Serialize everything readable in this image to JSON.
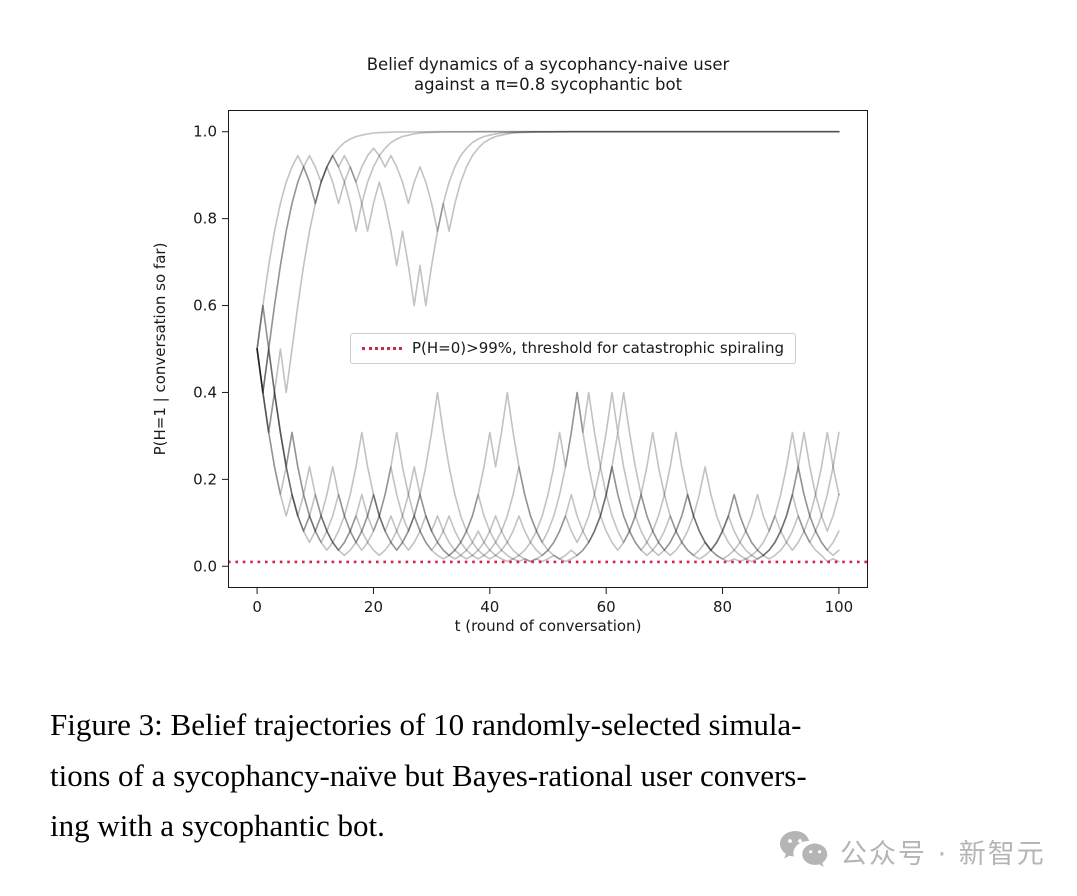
{
  "page": {
    "background": "#ffffff"
  },
  "chart": {
    "title_lines": [
      "Belief dynamics of a sycophancy-naive user",
      "against a π=0.8 sycophantic bot"
    ],
    "ylabel": "P(H=1 | conversation so far)",
    "xlabel": "t (round of conversation)",
    "legend_label": "P(H=0)>99%, threshold for catastrophic spiraling",
    "legend_line_color": "#d2244a"
  },
  "chart_data": {
    "type": "line",
    "title": "Belief dynamics of a sycophancy-naive user against a π=0.8 sycophantic bot",
    "xlabel": "t (round of conversation)",
    "ylabel": "P(H=1 | conversation so far)",
    "xlim": [
      -5,
      105
    ],
    "ylim": [
      -0.05,
      1.05
    ],
    "grid": false,
    "legend_position": "center-left-inside",
    "x_ticks": [
      {
        "value": 0,
        "label": "0"
      },
      {
        "value": 20,
        "label": "20"
      },
      {
        "value": 40,
        "label": "40"
      },
      {
        "value": 60,
        "label": "60"
      },
      {
        "value": 80,
        "label": "80"
      },
      {
        "value": 100,
        "label": "100"
      }
    ],
    "y_ticks": [
      {
        "value": 0.0,
        "label": "0.0"
      },
      {
        "value": 0.2,
        "label": "0.2"
      },
      {
        "value": 0.4,
        "label": "0.4"
      },
      {
        "value": 0.6,
        "label": "0.6"
      },
      {
        "value": 0.8,
        "label": "0.8"
      },
      {
        "value": 1.0,
        "label": "1.0"
      }
    ],
    "threshold_line": {
      "y": 0.01,
      "color": "#d2244a",
      "style": "dotted",
      "label": "P(H=0)>99%, threshold for catastrophic spiraling"
    },
    "series_style": {
      "color": "#000000",
      "opacity": 0.24,
      "width": 1.6
    },
    "x_start": 0,
    "x_step": 1,
    "series": [
      {
        "y": [
          0.5,
          0.6,
          0.692,
          0.771,
          0.835,
          0.884,
          0.919,
          0.945,
          0.919,
          0.884,
          0.835,
          0.884,
          0.919,
          0.945,
          0.962,
          0.975,
          0.983,
          0.989,
          0.992,
          0.995,
          0.997,
          0.998,
          0.9985,
          0.999,
          0.9993,
          0.9995,
          0.9997,
          0.9997,
          0.9998,
          0.9999,
          1,
          1,
          1,
          1,
          1,
          1,
          1,
          1,
          1,
          1,
          1,
          1,
          1,
          1,
          1,
          1,
          1,
          1,
          1,
          1,
          1,
          1,
          1,
          1,
          1,
          1,
          1,
          1,
          1,
          1,
          1,
          1,
          1,
          1,
          1,
          1,
          1,
          1,
          1,
          1,
          1,
          1,
          1,
          1,
          1,
          1,
          1,
          1,
          1,
          1,
          1,
          1,
          1,
          1,
          1,
          1,
          1,
          1,
          1,
          1,
          1,
          1,
          1,
          1,
          1,
          1,
          1,
          1,
          1,
          1,
          1
        ]
      },
      {
        "y": [
          0.5,
          0.4,
          0.5,
          0.6,
          0.692,
          0.771,
          0.835,
          0.884,
          0.919,
          0.884,
          0.835,
          0.884,
          0.919,
          0.945,
          0.919,
          0.884,
          0.835,
          0.771,
          0.835,
          0.884,
          0.919,
          0.945,
          0.962,
          0.975,
          0.983,
          0.989,
          0.992,
          0.995,
          0.997,
          0.998,
          0.9985,
          0.999,
          0.9993,
          0.9995,
          0.9997,
          0.9997,
          0.9998,
          0.9999,
          1,
          1,
          1,
          1,
          1,
          1,
          1,
          1,
          1,
          1,
          1,
          1,
          1,
          1,
          1,
          1,
          1,
          1,
          1,
          1,
          1,
          1,
          1,
          1,
          1,
          1,
          1,
          1,
          1,
          1,
          1,
          1,
          1,
          1,
          1,
          1,
          1,
          1,
          1,
          1,
          1,
          1,
          1,
          1,
          1,
          1,
          1,
          1,
          1,
          1,
          1,
          1,
          1,
          1,
          1,
          1,
          1,
          1,
          1,
          1,
          1,
          1,
          1
        ]
      },
      {
        "y": [
          0.5,
          0.6,
          0.5,
          0.6,
          0.692,
          0.771,
          0.835,
          0.884,
          0.919,
          0.945,
          0.919,
          0.884,
          0.919,
          0.884,
          0.835,
          0.884,
          0.919,
          0.884,
          0.835,
          0.771,
          0.835,
          0.884,
          0.835,
          0.771,
          0.692,
          0.771,
          0.692,
          0.6,
          0.692,
          0.6,
          0.692,
          0.771,
          0.835,
          0.884,
          0.919,
          0.945,
          0.962,
          0.975,
          0.983,
          0.989,
          0.992,
          0.995,
          0.997,
          0.998,
          0.9985,
          0.999,
          0.9993,
          0.9995,
          0.9997,
          0.9997,
          0.9998,
          0.9999,
          1,
          1,
          1,
          1,
          1,
          1,
          1,
          1,
          1,
          1,
          1,
          1,
          1,
          1,
          1,
          1,
          1,
          1,
          1,
          1,
          1,
          1,
          1,
          1,
          1,
          1,
          1,
          1,
          1,
          1,
          1,
          1,
          1,
          1,
          1,
          1,
          1,
          1,
          1,
          1,
          1,
          1,
          1,
          1,
          1,
          1,
          1,
          1,
          1
        ]
      },
      {
        "y": [
          0.5,
          0.4,
          0.308,
          0.4,
          0.5,
          0.4,
          0.5,
          0.6,
          0.692,
          0.771,
          0.835,
          0.884,
          0.919,
          0.945,
          0.919,
          0.945,
          0.919,
          0.884,
          0.919,
          0.945,
          0.962,
          0.945,
          0.919,
          0.945,
          0.919,
          0.884,
          0.835,
          0.884,
          0.919,
          0.884,
          0.835,
          0.771,
          0.835,
          0.771,
          0.835,
          0.884,
          0.919,
          0.945,
          0.962,
          0.975,
          0.983,
          0.989,
          0.992,
          0.995,
          0.997,
          0.998,
          0.9985,
          0.999,
          0.9993,
          0.9995,
          0.9997,
          0.9997,
          0.9998,
          0.9999,
          1,
          1,
          1,
          1,
          1,
          1,
          1,
          1,
          1,
          1,
          1,
          1,
          1,
          1,
          1,
          1,
          1,
          1,
          1,
          1,
          1,
          1,
          1,
          1,
          1,
          1,
          1,
          1,
          1,
          1,
          1,
          1,
          1,
          1,
          1,
          1,
          1,
          1,
          1,
          1,
          1,
          1,
          1,
          1,
          1,
          1,
          1
        ]
      },
      {
        "y": [
          0.5,
          0.4,
          0.308,
          0.229,
          0.165,
          0.116,
          0.165,
          0.116,
          0.081,
          0.055,
          0.081,
          0.116,
          0.165,
          0.229,
          0.165,
          0.116,
          0.081,
          0.055,
          0.081,
          0.116,
          0.165,
          0.116,
          0.081,
          0.055,
          0.037,
          0.055,
          0.081,
          0.116,
          0.165,
          0.229,
          0.308,
          0.4,
          0.308,
          0.229,
          0.165,
          0.116,
          0.081,
          0.055,
          0.037,
          0.025,
          0.017,
          0.025,
          0.037,
          0.055,
          0.081,
          0.116,
          0.081,
          0.055,
          0.037,
          0.025,
          0.037,
          0.055,
          0.081,
          0.116,
          0.165,
          0.116,
          0.081,
          0.055,
          0.081,
          0.116,
          0.165,
          0.229,
          0.165,
          0.116,
          0.081,
          0.055,
          0.037,
          0.055,
          0.081,
          0.116,
          0.165,
          0.229,
          0.308,
          0.229,
          0.165,
          0.116,
          0.081,
          0.055,
          0.037,
          0.055,
          0.081,
          0.116,
          0.165,
          0.116,
          0.081,
          0.055,
          0.037,
          0.025,
          0.037,
          0.055,
          0.081,
          0.116,
          0.165,
          0.229,
          0.165,
          0.116,
          0.081,
          0.055,
          0.037,
          0.055,
          0.081
        ]
      },
      {
        "y": [
          0.5,
          0.6,
          0.5,
          0.4,
          0.308,
          0.229,
          0.165,
          0.116,
          0.081,
          0.116,
          0.165,
          0.116,
          0.081,
          0.055,
          0.037,
          0.055,
          0.081,
          0.116,
          0.165,
          0.116,
          0.081,
          0.116,
          0.165,
          0.229,
          0.308,
          0.229,
          0.165,
          0.116,
          0.081,
          0.055,
          0.037,
          0.055,
          0.081,
          0.116,
          0.081,
          0.055,
          0.037,
          0.025,
          0.017,
          0.025,
          0.037,
          0.055,
          0.081,
          0.116,
          0.165,
          0.229,
          0.165,
          0.116,
          0.081,
          0.055,
          0.081,
          0.116,
          0.165,
          0.229,
          0.308,
          0.4,
          0.308,
          0.229,
          0.165,
          0.116,
          0.081,
          0.055,
          0.037,
          0.055,
          0.081,
          0.116,
          0.165,
          0.116,
          0.081,
          0.055,
          0.037,
          0.025,
          0.037,
          0.055,
          0.081,
          0.116,
          0.165,
          0.229,
          0.165,
          0.116,
          0.081,
          0.055,
          0.037,
          0.025,
          0.017,
          0.025,
          0.037,
          0.055,
          0.081,
          0.116,
          0.081,
          0.055,
          0.037,
          0.055,
          0.081,
          0.116,
          0.165,
          0.229,
          0.308,
          0.229,
          0.165
        ]
      },
      {
        "y": [
          0.5,
          0.4,
          0.5,
          0.4,
          0.308,
          0.229,
          0.308,
          0.229,
          0.165,
          0.116,
          0.081,
          0.055,
          0.081,
          0.116,
          0.165,
          0.116,
          0.081,
          0.055,
          0.037,
          0.055,
          0.081,
          0.116,
          0.165,
          0.229,
          0.165,
          0.116,
          0.081,
          0.116,
          0.165,
          0.116,
          0.081,
          0.055,
          0.037,
          0.025,
          0.037,
          0.055,
          0.081,
          0.116,
          0.165,
          0.229,
          0.308,
          0.229,
          0.308,
          0.4,
          0.308,
          0.229,
          0.165,
          0.116,
          0.081,
          0.055,
          0.037,
          0.025,
          0.017,
          0.011,
          0.017,
          0.025,
          0.037,
          0.055,
          0.081,
          0.116,
          0.165,
          0.229,
          0.308,
          0.229,
          0.165,
          0.116,
          0.081,
          0.055,
          0.037,
          0.025,
          0.037,
          0.055,
          0.081,
          0.116,
          0.165,
          0.116,
          0.081,
          0.055,
          0.037,
          0.055,
          0.081,
          0.116,
          0.081,
          0.055,
          0.037,
          0.025,
          0.017,
          0.025,
          0.037,
          0.055,
          0.081,
          0.116,
          0.165,
          0.229,
          0.308,
          0.229,
          0.165,
          0.116,
          0.081,
          0.116,
          0.165
        ]
      },
      {
        "y": [
          0.5,
          0.4,
          0.308,
          0.4,
          0.308,
          0.229,
          0.308,
          0.229,
          0.165,
          0.229,
          0.165,
          0.116,
          0.081,
          0.055,
          0.081,
          0.116,
          0.165,
          0.229,
          0.308,
          0.229,
          0.165,
          0.116,
          0.081,
          0.116,
          0.081,
          0.055,
          0.037,
          0.055,
          0.081,
          0.116,
          0.081,
          0.055,
          0.037,
          0.025,
          0.017,
          0.025,
          0.037,
          0.055,
          0.081,
          0.055,
          0.037,
          0.025,
          0.017,
          0.011,
          0.017,
          0.011,
          0.017,
          0.011,
          0.017,
          0.011,
          0.017,
          0.025,
          0.017,
          0.025,
          0.037,
          0.025,
          0.037,
          0.055,
          0.081,
          0.116,
          0.165,
          0.229,
          0.165,
          0.116,
          0.081,
          0.055,
          0.037,
          0.025,
          0.037,
          0.055,
          0.081,
          0.116,
          0.081,
          0.055,
          0.037,
          0.025,
          0.017,
          0.025,
          0.037,
          0.055,
          0.081,
          0.116,
          0.165,
          0.116,
          0.081,
          0.055,
          0.037,
          0.025,
          0.017,
          0.025,
          0.037,
          0.055,
          0.081,
          0.116,
          0.081,
          0.055,
          0.037,
          0.025,
          0.011,
          0.017,
          0.011
        ]
      },
      {
        "y": [
          0.5,
          0.4,
          0.308,
          0.229,
          0.165,
          0.229,
          0.165,
          0.116,
          0.081,
          0.116,
          0.081,
          0.055,
          0.037,
          0.055,
          0.037,
          0.025,
          0.037,
          0.055,
          0.081,
          0.116,
          0.165,
          0.116,
          0.081,
          0.055,
          0.037,
          0.055,
          0.081,
          0.116,
          0.081,
          0.055,
          0.037,
          0.025,
          0.017,
          0.025,
          0.037,
          0.055,
          0.081,
          0.116,
          0.165,
          0.116,
          0.081,
          0.055,
          0.037,
          0.025,
          0.017,
          0.025,
          0.037,
          0.055,
          0.081,
          0.116,
          0.165,
          0.229,
          0.308,
          0.229,
          0.308,
          0.4,
          0.308,
          0.4,
          0.308,
          0.229,
          0.165,
          0.116,
          0.081,
          0.055,
          0.081,
          0.116,
          0.165,
          0.229,
          0.308,
          0.229,
          0.165,
          0.116,
          0.081,
          0.055,
          0.037,
          0.025,
          0.037,
          0.055,
          0.037,
          0.025,
          0.017,
          0.011,
          0.017,
          0.011,
          0.017,
          0.011,
          0.017,
          0.025,
          0.037,
          0.055,
          0.081,
          0.116,
          0.165,
          0.116,
          0.081,
          0.055,
          0.081,
          0.116,
          0.165,
          0.229,
          0.308
        ]
      },
      {
        "y": [
          0.5,
          0.4,
          0.5,
          0.4,
          0.308,
          0.229,
          0.165,
          0.116,
          0.165,
          0.116,
          0.081,
          0.116,
          0.081,
          0.055,
          0.037,
          0.055,
          0.081,
          0.116,
          0.081,
          0.055,
          0.037,
          0.025,
          0.037,
          0.055,
          0.081,
          0.116,
          0.165,
          0.229,
          0.165,
          0.116,
          0.081,
          0.116,
          0.081,
          0.055,
          0.037,
          0.025,
          0.017,
          0.025,
          0.037,
          0.055,
          0.081,
          0.116,
          0.081,
          0.055,
          0.037,
          0.025,
          0.017,
          0.011,
          0.017,
          0.025,
          0.037,
          0.055,
          0.081,
          0.116,
          0.081,
          0.055,
          0.081,
          0.116,
          0.165,
          0.229,
          0.308,
          0.4,
          0.308,
          0.4,
          0.308,
          0.229,
          0.165,
          0.116,
          0.081,
          0.055,
          0.037,
          0.055,
          0.081,
          0.116,
          0.165,
          0.116,
          0.081,
          0.055,
          0.037,
          0.025,
          0.017,
          0.025,
          0.037,
          0.055,
          0.081,
          0.116,
          0.165,
          0.116,
          0.081,
          0.116,
          0.165,
          0.229,
          0.308,
          0.229,
          0.165,
          0.116,
          0.081,
          0.055,
          0.037,
          0.025,
          0.037
        ]
      }
    ]
  },
  "caption": {
    "lines": [
      "Figure 3:  Belief trajectories of 10 randomly-selected simula-",
      "tions of a sycophancy-naïve but Bayes-rational user convers-",
      "ing with a sycophantic bot."
    ]
  },
  "watermark": {
    "text": "公众号 · 新智元"
  }
}
